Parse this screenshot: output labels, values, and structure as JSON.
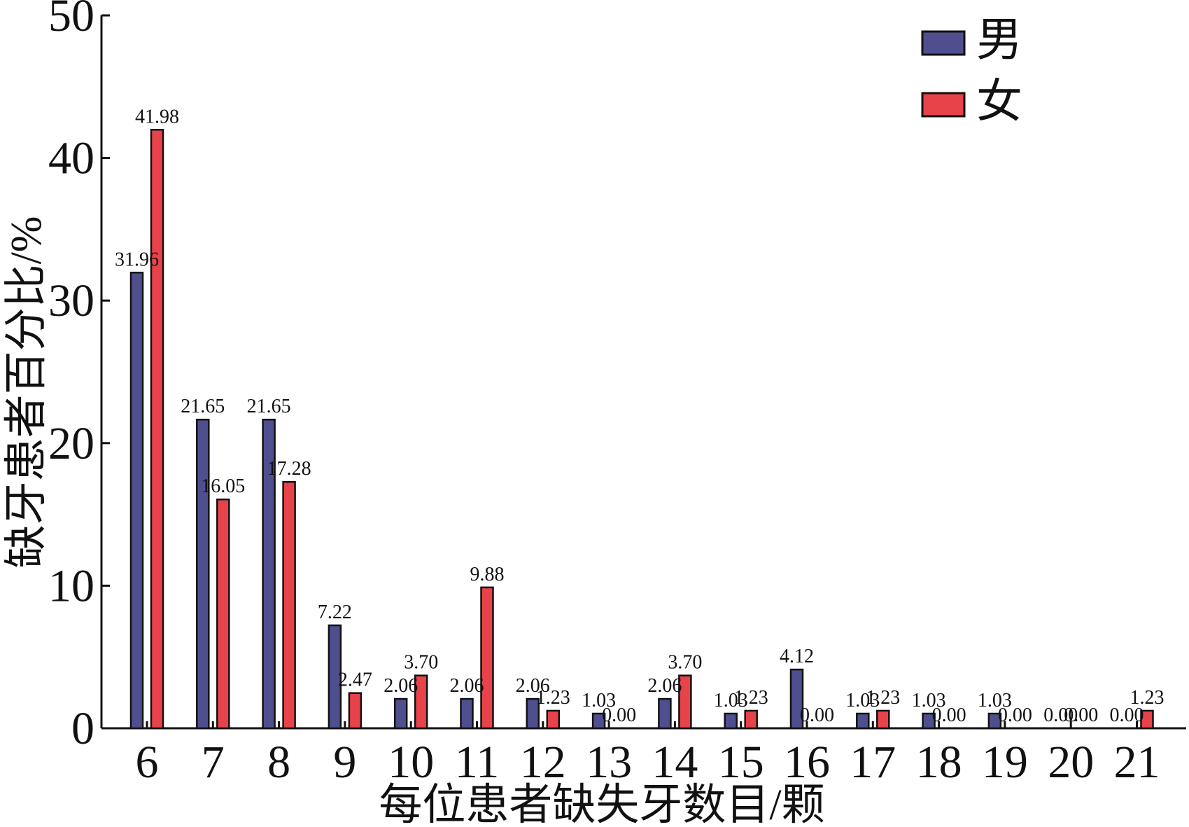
{
  "chart_data": {
    "type": "bar",
    "xlabel": "每位患者缺失牙数目/颗",
    "ylabel": "缺牙患者百分比/%",
    "ylim": [
      0,
      50
    ],
    "yticks": [
      "0",
      "10",
      "20",
      "30",
      "40",
      "50"
    ],
    "categories": [
      "6",
      "7",
      "8",
      "9",
      "10",
      "11",
      "12",
      "13",
      "14",
      "15",
      "16",
      "17",
      "18",
      "19",
      "20",
      "21"
    ],
    "series": [
      {
        "name": "男",
        "color": "#4f4f8f",
        "values": [
          31.96,
          21.65,
          21.65,
          7.22,
          2.06,
          2.06,
          2.06,
          1.03,
          2.06,
          1.03,
          4.12,
          1.03,
          1.03,
          1.03,
          0.0,
          0.0
        ],
        "labels": [
          "31.96",
          "21.65",
          "21.65",
          "7.22",
          "2.06",
          "2.06",
          "2.06",
          "1.03",
          "2.06",
          "1.03",
          "4.12",
          "1.03",
          "1.03",
          "1.03",
          "0.00",
          "0.00"
        ]
      },
      {
        "name": "女",
        "color": "#e8434a",
        "values": [
          41.98,
          16.05,
          17.28,
          2.47,
          3.7,
          9.88,
          1.23,
          0.0,
          3.7,
          1.23,
          0.0,
          1.23,
          0.0,
          0.0,
          0.0,
          1.23
        ],
        "labels": [
          "41.98",
          "16.05",
          "17.28",
          "2.47",
          "3.70",
          "9.88",
          "1.23",
          "0.00",
          "3.70",
          "1.23",
          "0.00",
          "1.23",
          "0.00",
          "0.00",
          "0.00",
          "1.23"
        ]
      }
    ],
    "legend": "top-right",
    "grid": false
  }
}
